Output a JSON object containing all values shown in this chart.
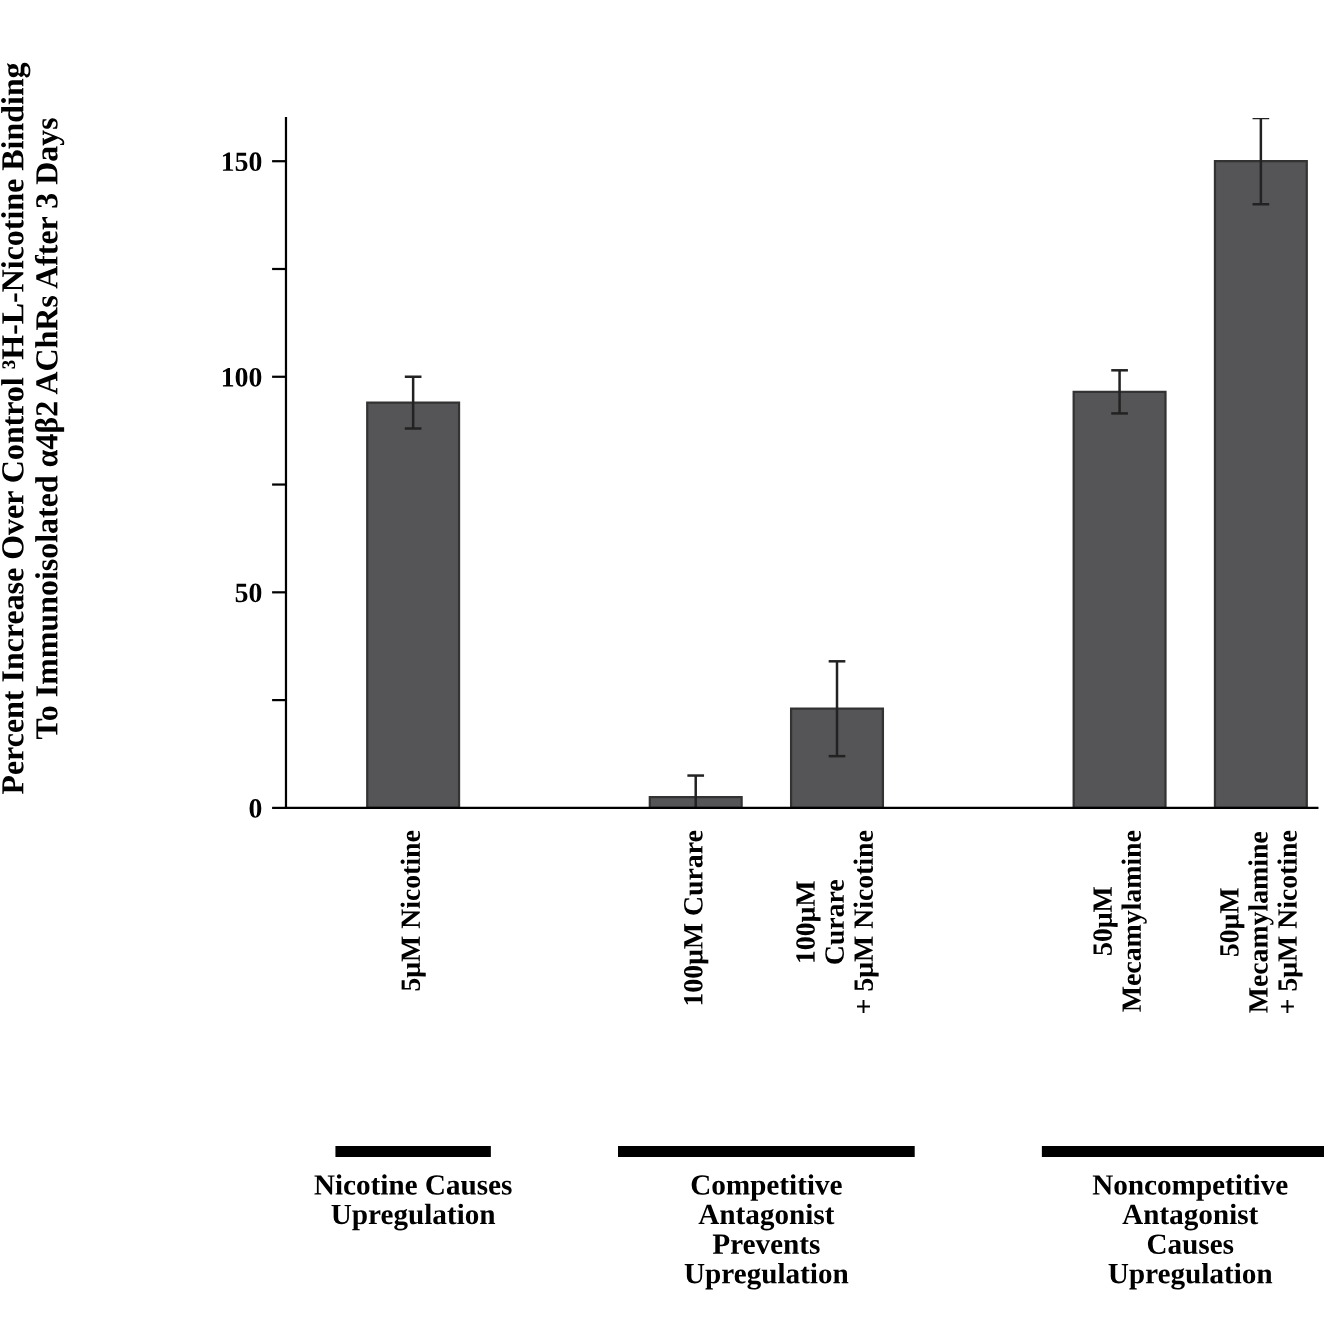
{
  "chart_data": {
    "type": "bar",
    "ylabel": "Percent Increase Over Control ³H-L-Nicotine Binding\nTo Immunoisolated α4β2 AChRs After 3 Days",
    "categories": [
      "5μM Nicotine",
      null,
      "100μM Curare",
      "100μM\nCurare\n+ 5μM Nicotine",
      null,
      "50μM\nMecamylamine",
      "50μM\nMecamylamine\n+ 5μM Nicotine"
    ],
    "values": [
      94,
      null,
      2.5,
      23,
      null,
      96.5,
      150
    ],
    "errors": [
      6,
      null,
      5,
      11,
      null,
      5,
      10
    ],
    "color": "#555558",
    "ylim": [
      0,
      160
    ],
    "yticks": [
      0,
      {
        "value": 25,
        "label": null
      },
      50,
      {
        "value": 75,
        "label": null
      },
      100,
      {
        "value": 125,
        "label": null
      },
      150
    ],
    "annotations": [
      "Nicotine Causes\nUpregulation",
      "Competitive\nAntagonist\nPrevents\nUpregulation",
      "Noncompetitive\nAntagonist\nCauses\nUpregulation"
    ],
    "grid": false,
    "legend": false
  }
}
